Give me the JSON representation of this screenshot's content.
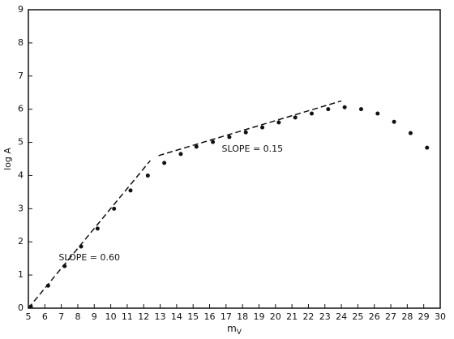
{
  "chart_data": {
    "type": "scatter",
    "x_label": "m",
    "x_label_sub": "V",
    "y_label": "log A",
    "color": "#111111",
    "x": [
      5.15,
      6.2,
      7.2,
      8.2,
      9.2,
      10.2,
      11.2,
      12.25,
      13.25,
      14.25,
      15.2,
      16.2,
      17.2,
      18.2,
      19.2,
      20.2,
      21.2,
      22.2,
      23.2,
      24.2,
      25.2,
      26.2,
      27.2,
      28.2,
      29.2
    ],
    "values": [
      0.05,
      0.68,
      1.27,
      1.86,
      2.4,
      3.0,
      3.55,
      4.0,
      4.38,
      4.65,
      4.87,
      5.01,
      5.16,
      5.3,
      5.45,
      5.6,
      5.75,
      5.87,
      6.0,
      6.06,
      6.0,
      5.87,
      5.62,
      5.28,
      4.84
    ],
    "fit_lines": [
      {
        "x": [
          5,
          12.4
        ],
        "y": [
          0,
          4.45
        ]
      },
      {
        "x": [
          12.9,
          24
        ],
        "y": [
          4.6,
          6.25
        ]
      }
    ],
    "annotations": [
      {
        "text": "SLOPE = 0.60",
        "x": 8.7,
        "y": 1.52
      },
      {
        "text": "SLOPE = 0.15",
        "x": 18.6,
        "y": 4.79
      }
    ],
    "xlim": [
      5,
      30
    ],
    "ylim": [
      0,
      9
    ],
    "xticks": [
      5,
      6,
      7,
      8,
      9,
      10,
      11,
      12,
      13,
      14,
      15,
      16,
      17,
      18,
      19,
      20,
      21,
      22,
      23,
      24,
      25,
      26,
      27,
      28,
      29,
      30
    ],
    "yticks": [
      0,
      1,
      2,
      3,
      4,
      5,
      6,
      7,
      8,
      9
    ]
  }
}
